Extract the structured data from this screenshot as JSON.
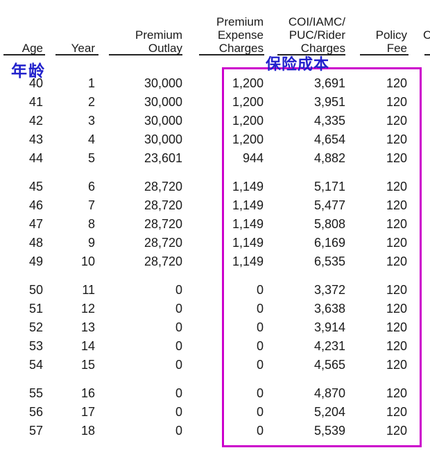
{
  "table": {
    "columns": [
      {
        "id": "age",
        "header_lines": [
          "Age"
        ]
      },
      {
        "id": "year",
        "header_lines": [
          "Year"
        ]
      },
      {
        "id": "outlay",
        "header_lines": [
          "Premium",
          "Outlay"
        ]
      },
      {
        "id": "expense",
        "header_lines": [
          "Premium",
          "Expense",
          "Charges"
        ]
      },
      {
        "id": "coi",
        "header_lines": [
          "COI/IAMC/",
          "PUC/Rider",
          "Charges"
        ]
      },
      {
        "id": "fee",
        "header_lines": [
          "Policy",
          "Fee"
        ]
      },
      {
        "id": "truncated",
        "header_lines": [
          "C"
        ]
      }
    ],
    "row_groups": [
      [
        {
          "age": "40",
          "year": "1",
          "outlay": "30,000",
          "expense": "1,200",
          "coi": "3,691",
          "fee": "120"
        },
        {
          "age": "41",
          "year": "2",
          "outlay": "30,000",
          "expense": "1,200",
          "coi": "3,951",
          "fee": "120"
        },
        {
          "age": "42",
          "year": "3",
          "outlay": "30,000",
          "expense": "1,200",
          "coi": "4,335",
          "fee": "120"
        },
        {
          "age": "43",
          "year": "4",
          "outlay": "30,000",
          "expense": "1,200",
          "coi": "4,654",
          "fee": "120"
        },
        {
          "age": "44",
          "year": "5",
          "outlay": "23,601",
          "expense": "944",
          "coi": "4,882",
          "fee": "120"
        }
      ],
      [
        {
          "age": "45",
          "year": "6",
          "outlay": "28,720",
          "expense": "1,149",
          "coi": "5,171",
          "fee": "120"
        },
        {
          "age": "46",
          "year": "7",
          "outlay": "28,720",
          "expense": "1,149",
          "coi": "5,477",
          "fee": "120"
        },
        {
          "age": "47",
          "year": "8",
          "outlay": "28,720",
          "expense": "1,149",
          "coi": "5,808",
          "fee": "120"
        },
        {
          "age": "48",
          "year": "9",
          "outlay": "28,720",
          "expense": "1,149",
          "coi": "6,169",
          "fee": "120"
        },
        {
          "age": "49",
          "year": "10",
          "outlay": "28,720",
          "expense": "1,149",
          "coi": "6,535",
          "fee": "120"
        }
      ],
      [
        {
          "age": "50",
          "year": "11",
          "outlay": "0",
          "expense": "0",
          "coi": "3,372",
          "fee": "120"
        },
        {
          "age": "51",
          "year": "12",
          "outlay": "0",
          "expense": "0",
          "coi": "3,638",
          "fee": "120"
        },
        {
          "age": "52",
          "year": "13",
          "outlay": "0",
          "expense": "0",
          "coi": "3,914",
          "fee": "120"
        },
        {
          "age": "53",
          "year": "14",
          "outlay": "0",
          "expense": "0",
          "coi": "4,231",
          "fee": "120"
        },
        {
          "age": "54",
          "year": "15",
          "outlay": "0",
          "expense": "0",
          "coi": "4,565",
          "fee": "120"
        }
      ],
      [
        {
          "age": "55",
          "year": "16",
          "outlay": "0",
          "expense": "0",
          "coi": "4,870",
          "fee": "120"
        },
        {
          "age": "56",
          "year": "17",
          "outlay": "0",
          "expense": "0",
          "coi": "5,204",
          "fee": "120"
        },
        {
          "age": "57",
          "year": "18",
          "outlay": "0",
          "expense": "0",
          "coi": "5,539",
          "fee": "120"
        }
      ]
    ]
  },
  "annotations": {
    "age_label_cn": "年龄",
    "insurance_cost_label_cn": "保险成本",
    "annotation_color": "#2222cc",
    "highlight_color": "#cc00cc"
  }
}
